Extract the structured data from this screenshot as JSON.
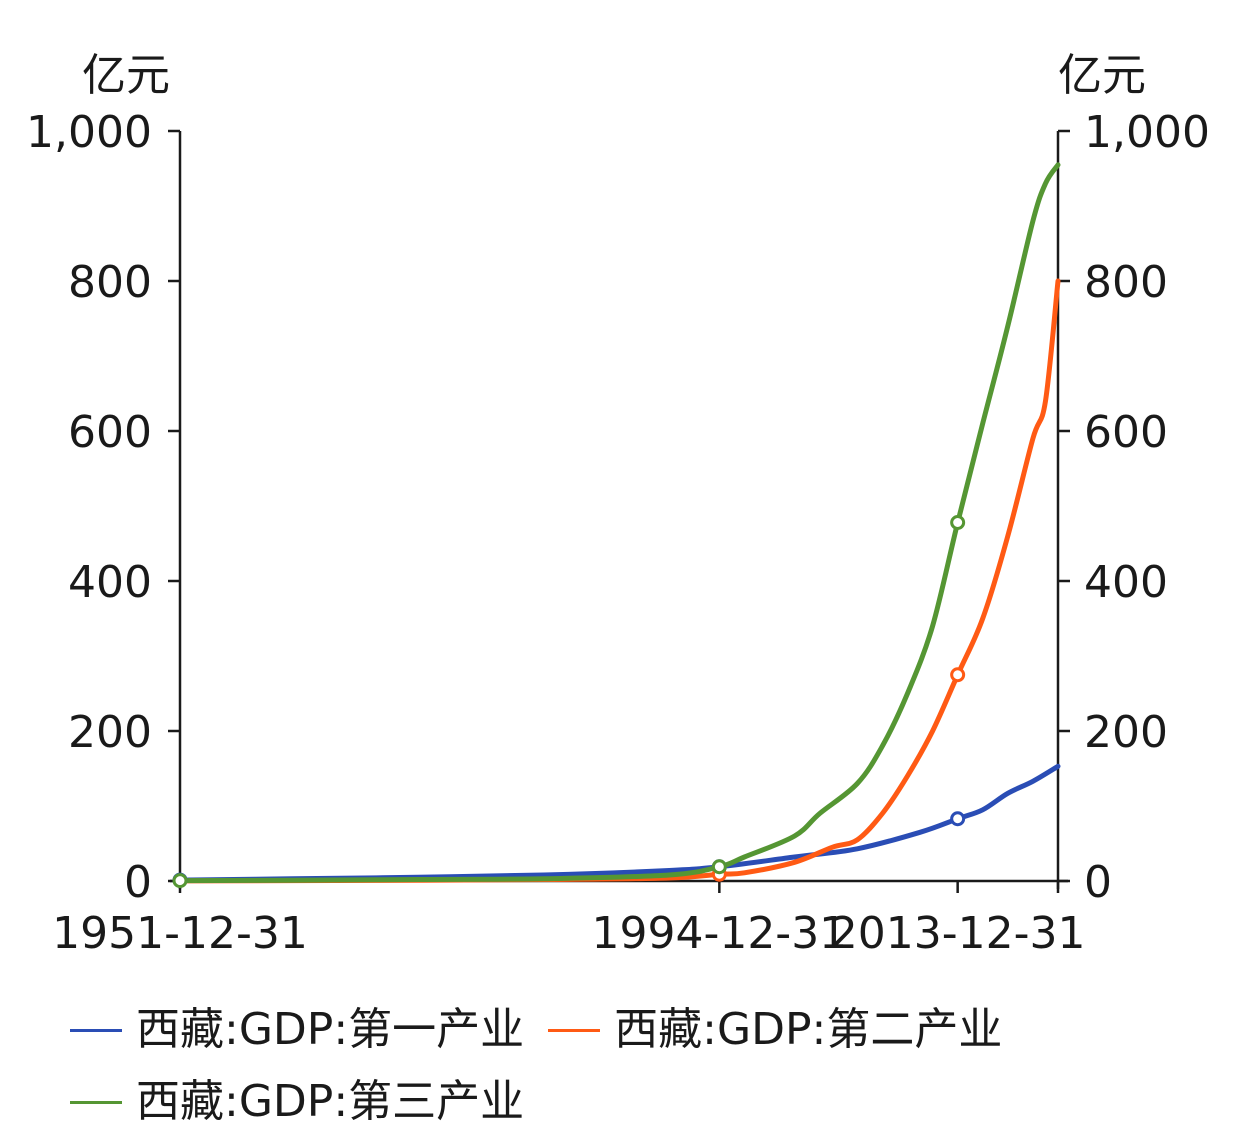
{
  "chart_data": {
    "type": "line",
    "title": "",
    "left_axis": {
      "unit": "亿元",
      "ylim": [
        0,
        1000
      ],
      "ticks": [
        "0",
        "200",
        "400",
        "600",
        "800",
        "1,000"
      ]
    },
    "right_axis": {
      "unit": "亿元",
      "ylim": [
        0,
        1000
      ],
      "ticks": [
        "0",
        "200",
        "400",
        "600",
        "800",
        "1,000"
      ]
    },
    "x_axis": {
      "range": [
        1951,
        2021
      ],
      "tick_labels": [
        "1951-12-31",
        "1994-12-31",
        "2013-12-31"
      ]
    },
    "grid": false,
    "legend_position": "bottom",
    "series": [
      {
        "name": "西藏:GDP:第一产业",
        "color": "#2a4db5",
        "x": [
          1951,
          1960,
          1970,
          1980,
          1990,
          1994,
          2000,
          2005,
          2010,
          2013,
          2015,
          2017,
          2019,
          2021
        ],
        "values": [
          1.2,
          3,
          5,
          8,
          14,
          19,
          32,
          43,
          65,
          83,
          95,
          117,
          133,
          153
        ]
      },
      {
        "name": "西藏:GDP:第二产业",
        "color": "#ff5a14",
        "x": [
          1951,
          1960,
          1970,
          1980,
          1990,
          1994,
          1996,
          2000,
          2003,
          2005,
          2007,
          2009,
          2011,
          2013,
          2015,
          2017,
          2019,
          2020,
          2021
        ],
        "values": [
          0.2,
          0.5,
          1,
          2,
          4,
          9,
          11,
          25,
          45,
          55,
          90,
          140,
          200,
          275,
          350,
          460,
          590,
          640,
          800
        ]
      },
      {
        "name": "西藏:GDP:第三产业",
        "color": "#559633",
        "x": [
          1951,
          1960,
          1970,
          1980,
          1990,
          1994,
          1996,
          2000,
          2002,
          2005,
          2007,
          2009,
          2011,
          2013,
          2015,
          2017,
          2019,
          2020,
          2021
        ],
        "values": [
          0.5,
          1,
          2,
          3,
          8,
          19,
          32,
          60,
          90,
          130,
          180,
          250,
          340,
          478,
          610,
          740,
          880,
          930,
          955
        ]
      }
    ],
    "markers": [
      {
        "series": 0,
        "x": [
          1951,
          1994,
          2013
        ],
        "values": [
          1.2,
          19,
          83
        ]
      },
      {
        "series": 1,
        "x": [
          1994,
          2013
        ],
        "values": [
          9,
          275
        ]
      },
      {
        "series": 2,
        "x": [
          1951,
          1994,
          2013
        ],
        "values": [
          0.5,
          19,
          478
        ]
      }
    ]
  }
}
